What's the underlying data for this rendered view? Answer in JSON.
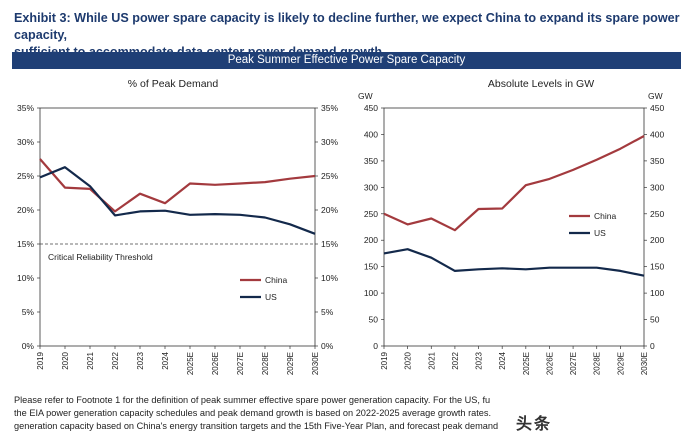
{
  "title_line1": "Exhibit 3: While US power spare capacity is likely to decline further, we expect China to expand its spare power capacity,",
  "title_line2": "sufficient to accommodate data center power demand growth",
  "banner": "Peak Summer Effective Power Spare Capacity",
  "footnote": [
    "Please refer to Footnote 1 for the definition of peak summer effective spare power generation capacity.  For the US, fu",
    "the EIA power generation capacity schedules and peak demand growth is based on 2022-2025 average growth rates.",
    "generation capacity based on China's energy transition targets and the 15th Five-Year Plan, and forecast peak demand"
  ],
  "watermark": "头条",
  "colors": {
    "china": "#a33a3e",
    "us": "#13294b",
    "banner": "#1f3f76"
  },
  "chart_data": [
    {
      "type": "line",
      "title": "% of Peak Demand",
      "categories": [
        "2019",
        "2020",
        "2021",
        "2022",
        "2023",
        "2024",
        "2025E",
        "2026E",
        "2027E",
        "2028E",
        "2029E",
        "2030E"
      ],
      "ylim": [
        0,
        35
      ],
      "yticks_left": [
        "0%",
        "5%",
        "10%",
        "15%",
        "20%",
        "25%",
        "30%",
        "35%"
      ],
      "yticks_right": [
        "0%",
        "5%",
        "10%",
        "15%",
        "20%",
        "25%",
        "30%",
        "35%"
      ],
      "series": [
        {
          "name": "China",
          "values": [
            27.5,
            23.3,
            23.1,
            19.8,
            22.4,
            21.0,
            23.9,
            23.7,
            23.9,
            24.1,
            24.6,
            25.0
          ]
        },
        {
          "name": "US",
          "values": [
            24.8,
            26.3,
            23.5,
            19.2,
            19.8,
            19.9,
            19.3,
            19.4,
            19.3,
            18.9,
            17.9,
            16.5
          ]
        }
      ],
      "threshold": {
        "value": 15,
        "label": "Critical Reliability Threshold"
      }
    },
    {
      "type": "line",
      "title": "Absolute Levels in GW",
      "ylabel_left": "GW",
      "ylabel_right": "GW",
      "categories": [
        "2019",
        "2020",
        "2021",
        "2022",
        "2023",
        "2024",
        "2025E",
        "2026E",
        "2027E",
        "2028E",
        "2029E",
        "2030E"
      ],
      "ylim": [
        0,
        450
      ],
      "yticks_left": [
        "0",
        "50",
        "100",
        "150",
        "200",
        "250",
        "300",
        "350",
        "400",
        "450"
      ],
      "yticks_right": [
        "0",
        "50",
        "100",
        "150",
        "200",
        "250",
        "300",
        "350",
        "400",
        "450"
      ],
      "series": [
        {
          "name": "China",
          "values": [
            250,
            230,
            241,
            219,
            259,
            260,
            304,
            316,
            333,
            352,
            373,
            397
          ]
        },
        {
          "name": "US",
          "values": [
            175,
            183,
            167,
            142,
            145,
            147,
            145,
            148,
            148,
            148,
            142,
            133
          ]
        }
      ]
    }
  ]
}
